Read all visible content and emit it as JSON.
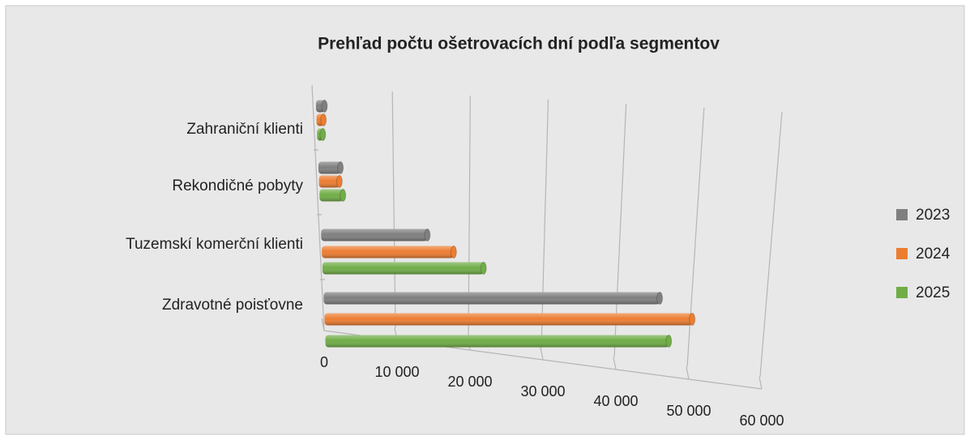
{
  "chart_data": {
    "type": "bar",
    "orientation": "horizontal",
    "style": "3d-cylinder",
    "title": "Prehľad počtu ošetrovacích dní podľa segmentov",
    "categories": [
      "Zdravotné poisťovne",
      "Tuzemskí komerční klienti",
      "Rekondičné pobyty",
      "Zahraniční klienti"
    ],
    "series": [
      {
        "name": "2023",
        "color": "#7f7f7f",
        "values": [
          45500,
          14300,
          3000,
          1200
        ]
      },
      {
        "name": "2024",
        "color": "#ed7d31",
        "values": [
          50000,
          17800,
          2800,
          1000
        ]
      },
      {
        "name": "2025",
        "color": "#70ad47",
        "values": [
          47000,
          21800,
          3200,
          800
        ]
      }
    ],
    "xlim": [
      0,
      60000
    ],
    "xticks": [
      0,
      {
        "value": 10000,
        "label": "10 000"
      },
      {
        "value": 20000,
        "label": "20 000"
      },
      {
        "value": 30000,
        "label": "30 000"
      },
      {
        "value": 40000,
        "label": "40 000"
      },
      {
        "value": 50000,
        "label": "50 000"
      },
      {
        "value": 60000,
        "label": "60 000"
      }
    ],
    "grid": true,
    "legend": "right"
  }
}
